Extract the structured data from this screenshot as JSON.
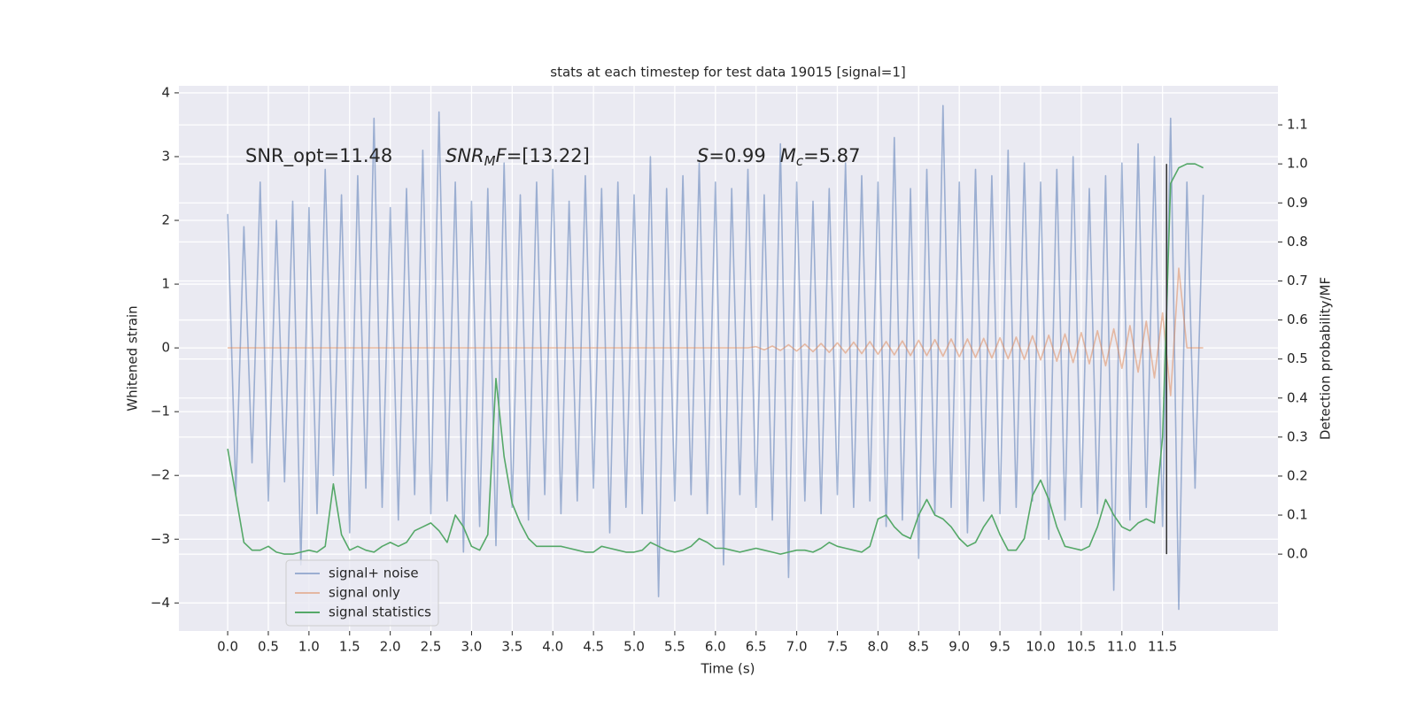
{
  "chart_data": {
    "type": "line",
    "title": "stats at each timestep for test data 19015 [signal=1]",
    "xlabel": "Time (s)",
    "ylabel": "Whitened strain",
    "y2label": "Detection probability/MF",
    "annotations": {
      "snr_opt": "SNR_opt=11.48",
      "snr_mf": [
        "SNR",
        "M",
        "F",
        "=[13.22]"
      ],
      "stats": [
        "S",
        "=0.99",
        "M",
        "c",
        "=5.87"
      ]
    },
    "xlim": [
      -0.6,
      12.92
    ],
    "ylim": [
      -4.44,
      4.11
    ],
    "y2lim": [
      -0.197,
      1.2
    ],
    "xticks": [
      {
        "value": 0,
        "label": "0.0"
      },
      0.5,
      {
        "value": 1,
        "label": "1.0"
      },
      1.5,
      {
        "value": 2,
        "label": "2.0"
      },
      2.5,
      {
        "value": 3,
        "label": "3.0"
      },
      3.5,
      {
        "value": 4,
        "label": "4.0"
      },
      4.5,
      {
        "value": 5,
        "label": "5.0"
      },
      5.5,
      {
        "value": 6,
        "label": "6.0"
      },
      6.5,
      {
        "value": 7,
        "label": "7.0"
      },
      7.5,
      {
        "value": 8,
        "label": "8.0"
      },
      8.5,
      {
        "value": 9,
        "label": "9.0"
      },
      9.5,
      {
        "value": 10,
        "label": "10.0"
      },
      10.5,
      {
        "value": 11,
        "label": "11.0"
      },
      11.5
    ],
    "yticks": [
      {
        "value": -4,
        "label": "−4"
      },
      {
        "value": -3,
        "label": "−3"
      },
      {
        "value": -2,
        "label": "−2"
      },
      {
        "value": -1,
        "label": "−1"
      },
      0,
      1,
      2,
      3,
      4
    ],
    "y2ticks": [
      {
        "value": 0,
        "label": "0.0"
      },
      0.1,
      0.2,
      0.3,
      0.4,
      0.5,
      0.6,
      0.7,
      0.8,
      0.9,
      {
        "value": 1,
        "label": "1.0"
      },
      1.1
    ],
    "grid": true,
    "legend": "lower left",
    "vline": {
      "x": 11.55,
      "from": 0,
      "to": 1,
      "axis": "y2",
      "color": "#333333"
    },
    "x": [
      0.0,
      0.1,
      0.2,
      0.3,
      0.4,
      0.5,
      0.6,
      0.7,
      0.8,
      0.9,
      1.0,
      1.1,
      1.2,
      1.3,
      1.4,
      1.5,
      1.6,
      1.7,
      1.8,
      1.9,
      2.0,
      2.1,
      2.2,
      2.3,
      2.4,
      2.5,
      2.6,
      2.7,
      2.8,
      2.9,
      3.0,
      3.1,
      3.2,
      3.3,
      3.4,
      3.5,
      3.6,
      3.7,
      3.8,
      3.9,
      4.0,
      4.1,
      4.2,
      4.3,
      4.4,
      4.5,
      4.6,
      4.7,
      4.8,
      4.9,
      5.0,
      5.1,
      5.2,
      5.3,
      5.4,
      5.5,
      5.6,
      5.7,
      5.8,
      5.9,
      6.0,
      6.1,
      6.2,
      6.3,
      6.4,
      6.5,
      6.6,
      6.7,
      6.8,
      6.9,
      7.0,
      7.1,
      7.2,
      7.3,
      7.4,
      7.5,
      7.6,
      7.7,
      7.8,
      7.9,
      8.0,
      8.1,
      8.2,
      8.3,
      8.4,
      8.5,
      8.6,
      8.7,
      8.8,
      8.9,
      9.0,
      9.1,
      9.2,
      9.3,
      9.4,
      9.5,
      9.6,
      9.7,
      9.8,
      9.9,
      10.0,
      10.1,
      10.2,
      10.3,
      10.4,
      10.5,
      10.6,
      10.7,
      10.8,
      10.9,
      11.0,
      11.1,
      11.2,
      11.3,
      11.4,
      11.5,
      11.6,
      11.7,
      11.8,
      11.9,
      12.0
    ],
    "series": [
      {
        "name": "signal+ noise",
        "color": "#4c72b0",
        "opacity": 0.5,
        "axis": "y",
        "values": [
          2.1,
          -2.3,
          1.9,
          -1.8,
          2.6,
          -2.4,
          2.0,
          -2.1,
          2.3,
          -3.4,
          2.2,
          -2.6,
          2.8,
          -2.0,
          2.4,
          -2.9,
          2.7,
          -2.2,
          3.6,
          -2.5,
          2.2,
          -2.7,
          2.5,
          -2.3,
          3.1,
          -2.6,
          3.7,
          -2.4,
          2.6,
          -3.2,
          2.3,
          -2.8,
          2.5,
          -3.1,
          2.9,
          -2.5,
          2.4,
          -2.7,
          2.6,
          -2.3,
          2.8,
          -2.6,
          2.3,
          -2.4,
          2.7,
          -2.2,
          2.5,
          -2.9,
          2.6,
          -2.5,
          2.4,
          -2.6,
          3.0,
          -3.9,
          2.5,
          -2.4,
          2.7,
          -2.3,
          2.9,
          -2.6,
          2.6,
          -3.4,
          2.5,
          -2.3,
          2.8,
          -2.5,
          2.4,
          -2.7,
          3.2,
          -3.6,
          2.6,
          -2.4,
          2.3,
          -2.6,
          2.5,
          -2.3,
          2.9,
          -2.5,
          2.7,
          -2.4,
          2.6,
          -2.8,
          3.3,
          -2.7,
          2.5,
          -3.3,
          2.8,
          -2.6,
          3.8,
          -2.5,
          2.6,
          -2.9,
          2.8,
          -2.4,
          2.7,
          -2.6,
          3.1,
          -2.5,
          2.9,
          -2.4,
          2.6,
          -3.0,
          2.8,
          -2.7,
          3.0,
          -2.5,
          2.5,
          -2.6,
          2.7,
          -3.8,
          2.9,
          -2.7,
          3.2,
          -2.5,
          3.0,
          -2.8,
          3.6,
          -4.1,
          2.6,
          -2.2,
          2.4
        ]
      },
      {
        "name": "signal only",
        "color": "#dd8452",
        "opacity": 0.5,
        "axis": "y",
        "values": [
          0,
          0,
          0,
          0,
          0,
          0,
          0,
          0,
          0,
          0,
          0,
          0,
          0,
          0,
          0,
          0,
          0,
          0,
          0,
          0,
          0,
          0,
          0,
          0,
          0,
          0,
          0,
          0,
          0,
          0,
          0,
          0,
          0,
          0,
          0,
          0,
          0,
          0,
          0,
          0,
          0,
          0,
          0,
          0,
          0,
          0,
          0,
          0,
          0,
          0,
          0,
          0,
          0,
          0,
          0,
          0,
          0,
          0,
          0,
          0,
          0,
          0,
          0,
          0,
          0,
          0.02,
          -0.03,
          0.03,
          -0.04,
          0.05,
          -0.05,
          0.06,
          -0.06,
          0.07,
          -0.07,
          0.08,
          -0.08,
          0.09,
          -0.09,
          0.1,
          -0.1,
          0.1,
          -0.11,
          0.11,
          -0.12,
          0.12,
          -0.12,
          0.13,
          -0.13,
          0.14,
          -0.14,
          0.14,
          -0.15,
          0.15,
          -0.16,
          0.16,
          -0.17,
          0.17,
          -0.18,
          0.19,
          -0.19,
          0.2,
          -0.21,
          0.22,
          -0.23,
          0.24,
          -0.25,
          0.27,
          -0.28,
          0.3,
          -0.32,
          0.35,
          -0.38,
          0.42,
          -0.47,
          0.55,
          -0.75,
          1.25,
          0,
          0,
          0
        ]
      },
      {
        "name": "signal statistics",
        "color": "#55a868",
        "opacity": 1,
        "axis": "y2",
        "values": [
          0.27,
          0.15,
          0.03,
          0.01,
          0.01,
          0.02,
          0.005,
          0,
          0,
          0.005,
          0.01,
          0.005,
          0.02,
          0.18,
          0.05,
          0.01,
          0.02,
          0.01,
          0.005,
          0.02,
          0.03,
          0.02,
          0.03,
          0.06,
          0.07,
          0.08,
          0.06,
          0.03,
          0.1,
          0.07,
          0.02,
          0.01,
          0.05,
          0.45,
          0.25,
          0.13,
          0.08,
          0.04,
          0.02,
          0.02,
          0.02,
          0.02,
          0.015,
          0.01,
          0.005,
          0.005,
          0.02,
          0.015,
          0.01,
          0.005,
          0.005,
          0.01,
          0.03,
          0.02,
          0.01,
          0.005,
          0.01,
          0.02,
          0.04,
          0.03,
          0.015,
          0.015,
          0.01,
          0.005,
          0.01,
          0.015,
          0.01,
          0.005,
          0.0,
          0.005,
          0.01,
          0.01,
          0.005,
          0.015,
          0.03,
          0.02,
          0.015,
          0.01,
          0.005,
          0.02,
          0.09,
          0.1,
          0.07,
          0.05,
          0.04,
          0.1,
          0.14,
          0.1,
          0.09,
          0.07,
          0.04,
          0.02,
          0.03,
          0.07,
          0.1,
          0.05,
          0.01,
          0.01,
          0.04,
          0.15,
          0.19,
          0.14,
          0.07,
          0.02,
          0.015,
          0.01,
          0.02,
          0.07,
          0.14,
          0.1,
          0.07,
          0.06,
          0.08,
          0.09,
          0.08,
          0.3,
          0.95,
          0.99,
          1.0,
          1.0,
          0.99
        ]
      }
    ]
  }
}
